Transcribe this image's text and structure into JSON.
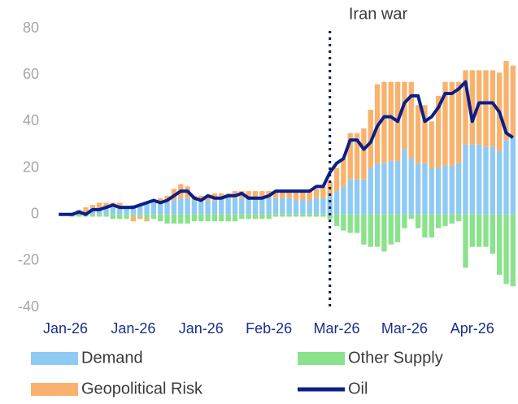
{
  "chart_data": {
    "type": "bar",
    "stacked": true,
    "categories": [
      null,
      "Jan-26",
      null,
      null,
      null,
      null,
      null,
      null,
      null,
      null,
      null,
      "Jan-26",
      null,
      null,
      null,
      null,
      null,
      null,
      null,
      null,
      null,
      "Jan-26",
      null,
      null,
      null,
      null,
      null,
      null,
      null,
      null,
      null,
      "Feb-26",
      null,
      null,
      null,
      null,
      null,
      null,
      null,
      null,
      null,
      "Mar-26",
      null,
      null,
      null,
      null,
      null,
      null,
      null,
      null,
      null,
      "Mar-26",
      null,
      null,
      null,
      null,
      null,
      null,
      null,
      null,
      null,
      "Apr-26",
      null,
      null,
      null,
      null,
      null,
      null
    ],
    "series": [
      {
        "name": "Demand",
        "color": "#8fcaf5",
        "values": [
          0,
          0,
          0,
          1,
          1,
          2,
          2,
          3,
          3,
          3,
          3,
          4,
          4,
          5,
          5,
          5,
          5,
          6,
          7,
          7,
          6,
          6,
          6,
          6,
          7,
          7,
          7,
          7,
          7,
          7,
          7,
          7,
          7,
          7,
          7,
          6,
          6,
          6,
          7,
          7,
          8,
          10,
          12,
          15,
          15,
          15,
          20,
          22,
          22,
          23,
          23,
          28,
          24,
          22,
          22,
          20,
          20,
          21,
          21,
          22,
          30,
          30,
          30,
          29,
          29,
          27,
          32,
          33
        ]
      },
      {
        "name": "Other Supply",
        "color": "#8be28d",
        "values": [
          0,
          0,
          -1,
          -1,
          -1,
          -1,
          -1,
          -1,
          -2,
          -2,
          -2,
          -1,
          -1,
          -2,
          -2,
          -3,
          -4,
          -4,
          -4,
          -4,
          -3,
          -3,
          -3,
          -3,
          -3,
          -3,
          -3,
          -2,
          -2,
          -2,
          -2,
          -2,
          -1,
          -1,
          -1,
          -1,
          -1,
          -1,
          -1,
          -1,
          -2,
          -5,
          -7,
          -8,
          -8,
          -13,
          -14,
          -14,
          -16,
          -13,
          -12,
          -6,
          -2,
          -6,
          -10,
          -10,
          -6,
          -5,
          -4,
          -3,
          -23,
          -14,
          -14,
          -14,
          -17,
          -26,
          -30,
          -31
        ]
      },
      {
        "name": "Geopolitical Risk",
        "color": "#f9b26d",
        "values": [
          0,
          0,
          0,
          1,
          2,
          2,
          3,
          2,
          2,
          2,
          0,
          -2,
          -1,
          -1,
          1,
          2,
          3,
          5,
          6,
          5,
          2,
          2,
          2,
          3,
          2,
          2,
          3,
          3,
          3,
          3,
          3,
          3,
          3,
          3,
          3,
          4,
          4,
          4,
          4,
          5,
          6,
          10,
          12,
          20,
          20,
          22,
          25,
          34,
          35,
          34,
          34,
          29,
          33,
          25,
          25,
          20,
          31,
          36,
          36,
          35,
          32,
          32,
          32,
          33,
          33,
          34,
          34,
          31
        ]
      },
      {
        "name": "Oil",
        "type": "line",
        "color": "#0c1f8a",
        "values": [
          0,
          0,
          0,
          1,
          0,
          2,
          2,
          3,
          4,
          3,
          3,
          3,
          4,
          5,
          6,
          5,
          6,
          8,
          10,
          10,
          7,
          6,
          8,
          7,
          7,
          8,
          8,
          9,
          7,
          7,
          7,
          8,
          10,
          10,
          10,
          10,
          10,
          10,
          12,
          12,
          18,
          22,
          24,
          32,
          32,
          28,
          31,
          38,
          42,
          42,
          40,
          48,
          51,
          51,
          40,
          42,
          46,
          52,
          52,
          54,
          57,
          40,
          48,
          48,
          48,
          44,
          35,
          33
        ]
      }
    ],
    "ylim": [
      -40,
      80
    ],
    "yticks": [
      -40,
      -20,
      0,
      20,
      40,
      60,
      80
    ],
    "grid": false,
    "annotations": [
      {
        "text": "Iran war",
        "x": 40.5
      }
    ]
  }
}
